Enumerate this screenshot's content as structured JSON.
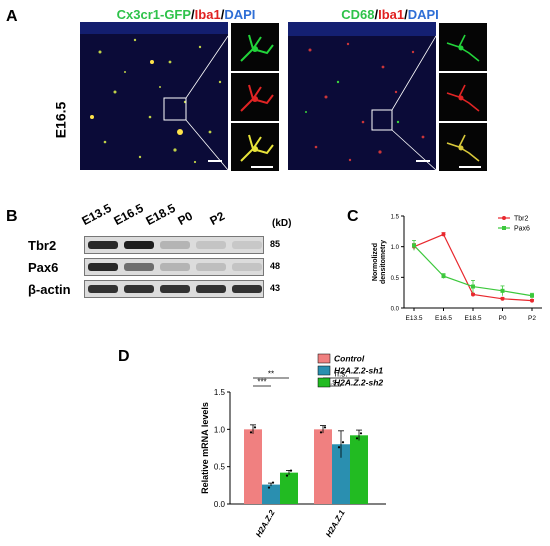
{
  "panel_a": {
    "letter": "A",
    "stage_label": "E16.5",
    "left_title": [
      {
        "text": "Cx3cr1-GFP",
        "color": "#2ec24a"
      },
      {
        "text": "/",
        "color": "#000000"
      },
      {
        "text": "Iba1",
        "color": "#e02020"
      },
      {
        "text": "/",
        "color": "#000000"
      },
      {
        "text": "DAPI",
        "color": "#2f6fd6"
      }
    ],
    "right_title": [
      {
        "text": "CD68",
        "color": "#2ec24a"
      },
      {
        "text": "/",
        "color": "#000000"
      },
      {
        "text": "Iba1",
        "color": "#e02020"
      },
      {
        "text": "/",
        "color": "#000000"
      },
      {
        "text": "DAPI",
        "color": "#2f6fd6"
      }
    ]
  },
  "panel_b": {
    "letter": "B",
    "lanes": [
      "E13.5",
      "E16.5",
      "E18.5",
      "P0",
      "P2"
    ],
    "kd_header": "(kD)",
    "rows": [
      {
        "name": "Tbr2",
        "kd": "85",
        "intensity": [
          0.9,
          0.95,
          0.2,
          0.12,
          0.1
        ]
      },
      {
        "name": "Pax6",
        "kd": "48",
        "intensity": [
          0.9,
          0.55,
          0.2,
          0.15,
          0.12
        ]
      },
      {
        "name": "β-actin",
        "kd": "43",
        "intensity": [
          0.85,
          0.85,
          0.85,
          0.85,
          0.85
        ]
      }
    ]
  },
  "panel_c": {
    "letter": "C",
    "chart_data": {
      "type": "line",
      "categories": [
        "E13.5",
        "E16.5",
        "E18.5",
        "P0",
        "P2"
      ],
      "ylabel": "Normolized densitometry",
      "xlabel": "",
      "ylim": [
        0,
        1.5
      ],
      "yticks": [
        "0.0",
        "0.5",
        "1.0",
        "1.5"
      ],
      "legend_position": "top-right",
      "series": [
        {
          "name": "Tbr2",
          "color": "#e8282e",
          "values": [
            1.0,
            1.2,
            0.22,
            0.15,
            0.12
          ],
          "errors": [
            0.05,
            0.03,
            0.02,
            0.02,
            0.02
          ]
        },
        {
          "name": "Pax6",
          "color": "#3cc83c",
          "values": [
            1.02,
            0.52,
            0.35,
            0.28,
            0.2
          ],
          "errors": [
            0.08,
            0.04,
            0.1,
            0.08,
            0.04
          ]
        }
      ]
    }
  },
  "panel_d": {
    "letter": "D",
    "chart_data": {
      "type": "bar",
      "categories": [
        "H2A.Z.2",
        "H2A.Z.1"
      ],
      "ylabel": "Relative mRNA levels",
      "ylim": [
        0,
        1.5
      ],
      "yticks": [
        "0.0",
        "0.5",
        "1.0",
        "1.5"
      ],
      "legend_position": "top-right",
      "series": [
        {
          "name": "Control",
          "color": "#f08080",
          "values": [
            1.0,
            1.0
          ],
          "errors": [
            0.06,
            0.05
          ]
        },
        {
          "name": "H2A.Z.2-sh1",
          "color": "#2a8fb0",
          "values": [
            0.26,
            0.8
          ],
          "errors": [
            0.02,
            0.18
          ]
        },
        {
          "name": "H2A.Z.2-sh2",
          "color": "#22bb22",
          "values": [
            0.42,
            0.92
          ],
          "errors": [
            0.03,
            0.07
          ]
        }
      ],
      "significance": [
        {
          "label": "**",
          "group": 0,
          "from_series": 0,
          "to_series": 2
        },
        {
          "label": "***",
          "group": 0,
          "from_series": 0,
          "to_series": 1
        },
        {
          "label": "n.s.",
          "group": 1,
          "from_series": 0,
          "to_series": 2
        },
        {
          "label": "n.s.",
          "group": 1,
          "from_series": 0,
          "to_series": 1
        }
      ]
    }
  }
}
